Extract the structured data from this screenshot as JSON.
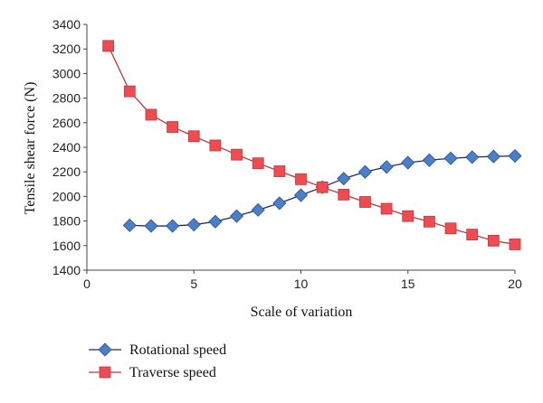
{
  "chart_data": {
    "type": "line",
    "title": "",
    "xlabel": "Scale of variation",
    "ylabel": "Tensile shear force (N)",
    "xlim": [
      0,
      20
    ],
    "ylim": [
      1400,
      3400
    ],
    "xticks": [
      0,
      5,
      10,
      15,
      20
    ],
    "yticks": [
      1400,
      1600,
      1800,
      2000,
      2200,
      2400,
      2600,
      2800,
      3000,
      3200,
      3400
    ],
    "grid": false,
    "legend": "bottom-left",
    "series": [
      {
        "name": "Rotational speed",
        "marker": "diamond",
        "color": "#4a7fc9",
        "line_color": "#1f2f5a",
        "x": [
          2,
          3,
          4,
          5,
          6,
          7,
          8,
          9,
          10,
          11,
          12,
          13,
          14,
          15,
          16,
          17,
          18,
          19,
          20
        ],
        "y": [
          1765,
          1760,
          1760,
          1770,
          1795,
          1840,
          1890,
          1945,
          2010,
          2075,
          2145,
          2200,
          2240,
          2275,
          2295,
          2310,
          2320,
          2325,
          2330
        ]
      },
      {
        "name": "Traverse speed",
        "marker": "square",
        "color": "#ef4b50",
        "line_color": "#b93a3a",
        "x": [
          1,
          2,
          3,
          4,
          5,
          6,
          7,
          8,
          9,
          10,
          11,
          12,
          13,
          14,
          15,
          16,
          17,
          18,
          19,
          20
        ],
        "y": [
          3225,
          2855,
          2665,
          2565,
          2490,
          2415,
          2340,
          2270,
          2205,
          2140,
          2075,
          2015,
          1955,
          1900,
          1840,
          1795,
          1740,
          1690,
          1640,
          1610
        ]
      }
    ]
  }
}
